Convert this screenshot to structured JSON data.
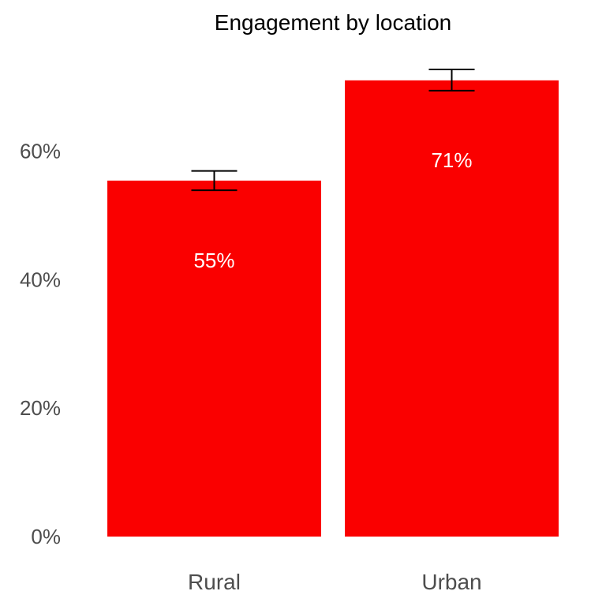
{
  "chart_data": {
    "type": "bar",
    "title": "Engagement by location",
    "categories": [
      "Rural",
      "Urban"
    ],
    "values": [
      55.4,
      71.0
    ],
    "value_labels": [
      "55%",
      "71%"
    ],
    "error_bars": [
      {
        "low": 53.9,
        "high": 56.9
      },
      {
        "low": 69.4,
        "high": 72.7
      }
    ],
    "ylim": [
      0,
      72.7
    ],
    "yticks": [
      0,
      20,
      40,
      60
    ],
    "ytick_labels": [
      "0%",
      "20%",
      "40%",
      "60%"
    ],
    "xlabel": "",
    "ylabel": "",
    "grid": false,
    "colors": {
      "bar": "#fa0000",
      "bar_label": "#ffffff",
      "error_bar": "#000000",
      "tick_label": "#4d4d4d",
      "title": "#000000"
    }
  }
}
